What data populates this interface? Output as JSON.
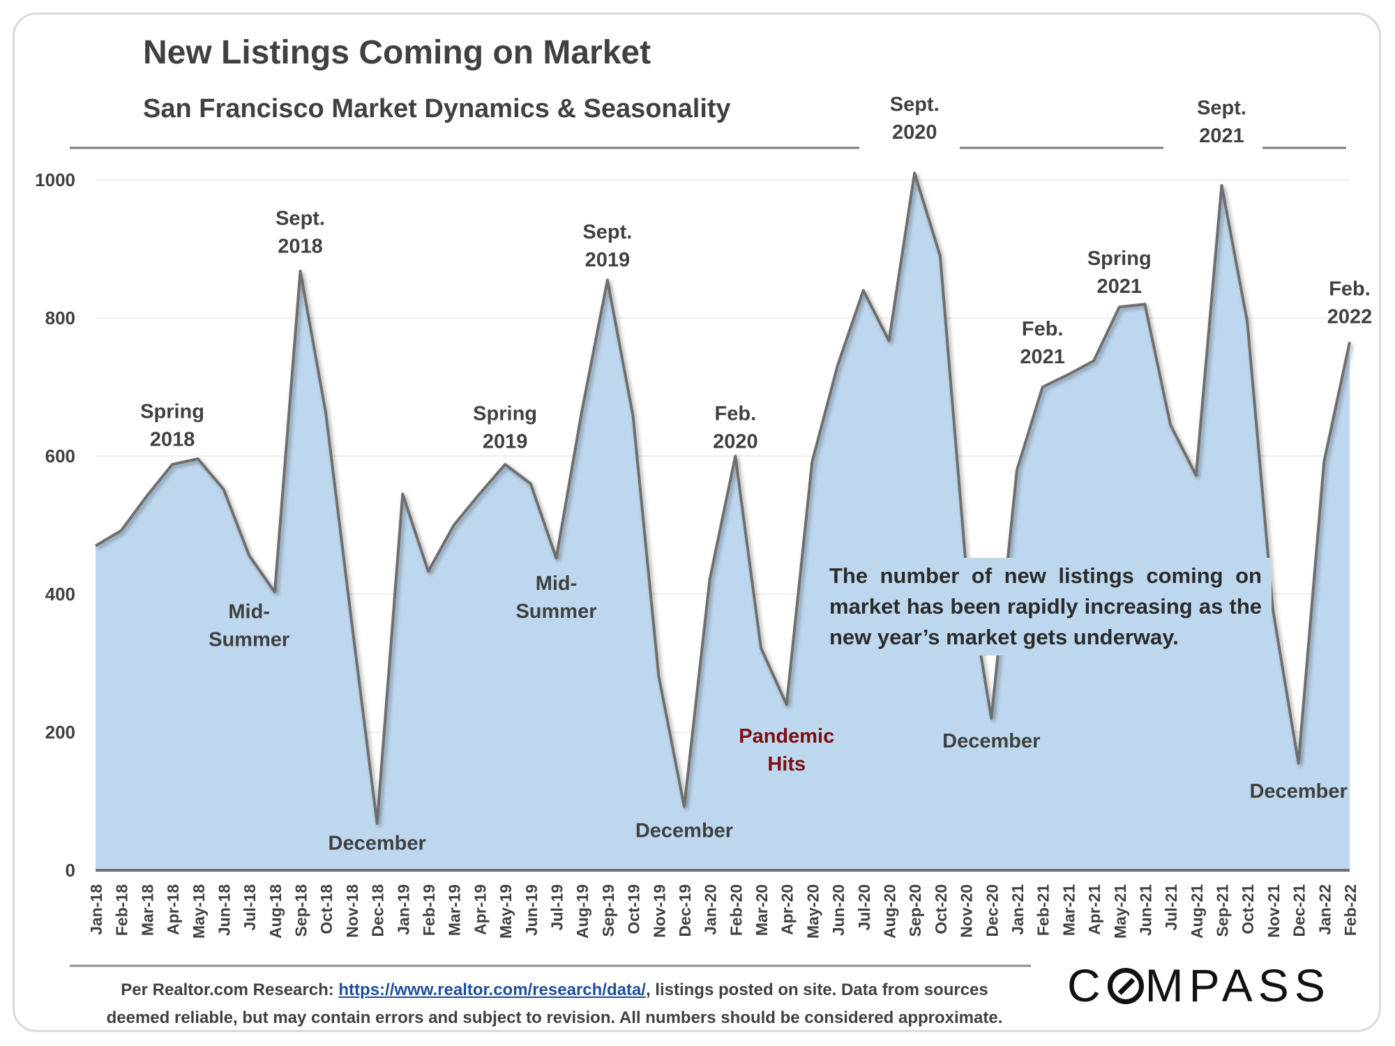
{
  "chart_data": {
    "type": "area",
    "title": "New Listings Coming on Market",
    "subtitle": "San Francisco Market Dynamics & Seasonality",
    "xlabel": "",
    "ylabel": "",
    "ylim": [
      0,
      1000
    ],
    "yticks": [
      0,
      200,
      400,
      600,
      800,
      1000
    ],
    "grid": true,
    "categories": [
      "Jan-18",
      "Feb-18",
      "Mar-18",
      "Apr-18",
      "May-18",
      "Jun-18",
      "Jul-18",
      "Aug-18",
      "Sep-18",
      "Oct-18",
      "Nov-18",
      "Dec-18",
      "Jan-19",
      "Feb-19",
      "Mar-19",
      "Apr-19",
      "May-19",
      "Jun-19",
      "Jul-19",
      "Aug-19",
      "Sep-19",
      "Oct-19",
      "Nov-19",
      "Dec-19",
      "Jan-20",
      "Feb-20",
      "Mar-20",
      "Apr-20",
      "May-20",
      "Jun-20",
      "Jul-20",
      "Aug-20",
      "Sep-20",
      "Oct-20",
      "Nov-20",
      "Dec-20",
      "Jan-21",
      "Feb-21",
      "Mar-21",
      "Apr-21",
      "May-21",
      "Jun-21",
      "Jul-21",
      "Aug-21",
      "Sep-21",
      "Oct-21",
      "Nov-21",
      "Dec-21",
      "Jan-22",
      "Feb-22"
    ],
    "values": [
      470,
      492,
      542,
      588,
      596,
      552,
      456,
      403,
      868,
      662,
      362,
      68,
      545,
      433,
      500,
      545,
      588,
      560,
      452,
      665,
      855,
      658,
      282,
      92,
      422,
      600,
      322,
      240,
      592,
      732,
      840,
      767,
      1010,
      890,
      445,
      220,
      580,
      700,
      718,
      738,
      816,
      820,
      645,
      572,
      992,
      795,
      378,
      155,
      592,
      765
    ],
    "annotations": [
      {
        "lines": [
          "Spring",
          "2018"
        ],
        "x": "Apr-18",
        "y": 655
      },
      {
        "lines": [
          "Sept.",
          "2018"
        ],
        "x": "Sep-18",
        "y": 935
      },
      {
        "lines": [
          "Mid-",
          "Summer"
        ],
        "x": "Jul-18",
        "y": 365
      },
      {
        "lines": [
          "December"
        ],
        "x": "Dec-18",
        "y": 30
      },
      {
        "lines": [
          "Spring",
          "2019"
        ],
        "x": "May-19",
        "y": 652
      },
      {
        "lines": [
          "Sept.",
          "2019"
        ],
        "x": "Sep-19",
        "y": 915
      },
      {
        "lines": [
          "Mid-",
          "Summer"
        ],
        "x": "Jul-19",
        "y": 406
      },
      {
        "lines": [
          "December"
        ],
        "x": "Dec-19",
        "y": 48
      },
      {
        "lines": [
          "Feb.",
          "2020"
        ],
        "x": "Feb-20",
        "y": 652
      },
      {
        "lines": [
          "Pandemic",
          "Hits"
        ],
        "x": "Apr-20",
        "y": 185,
        "color": "#7b0e12"
      },
      {
        "lines": [
          "Sept.",
          "2020"
        ],
        "x": "Sep-20",
        "y": 1100
      },
      {
        "lines": [
          "December"
        ],
        "x": "Dec-20",
        "y": 178
      },
      {
        "lines": [
          "Feb.",
          "2021"
        ],
        "x": "Feb-21",
        "y": 775
      },
      {
        "lines": [
          "Spring",
          "2021"
        ],
        "x": "May-21",
        "y": 877
      },
      {
        "lines": [
          "Sept.",
          "2021"
        ],
        "x": "Sep-21",
        "y": 1095
      },
      {
        "lines": [
          "December"
        ],
        "x": "Dec-21",
        "y": 105
      },
      {
        "lines": [
          "Feb.",
          "2022"
        ],
        "x": "Feb-22",
        "y": 833
      }
    ],
    "callout": "The number of new listings coming on market has been rapidly increasing as the new year’s market gets underway."
  },
  "footer": {
    "prefix": "Per Realtor.com Research: ",
    "link": "https://www.realtor.com/research/data/",
    "suffix_line1": ", listings posted on site. Data from sources",
    "line2": "deemed reliable, but may contain errors and subject to revision. All numbers should be considered approximate."
  },
  "logo": {
    "left": "C",
    "o": "O",
    "right": "MPASS"
  },
  "colors": {
    "area_fill": "#bdd7ee",
    "line": "#6e6e6e",
    "text": "#404040",
    "accent": "#7b0e12"
  }
}
